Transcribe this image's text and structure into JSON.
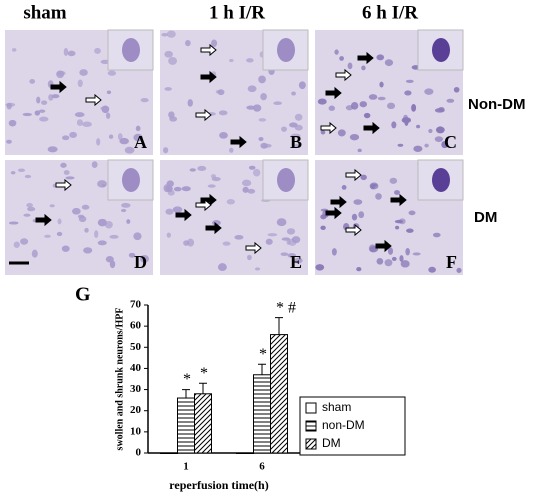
{
  "figure": {
    "columns": [
      "sham",
      "1 h I/R",
      "6 h I/R"
    ],
    "rows": [
      "Non-DM",
      "DM"
    ],
    "panels": [
      "A",
      "B",
      "C",
      "D",
      "E",
      "F"
    ],
    "chart_label": "G"
  },
  "chart_data": {
    "type": "bar",
    "ylabel": "swollen and shrunk neurons/HPF",
    "xlabel": "reperfusion time(h)",
    "categories": [
      "1",
      "6"
    ],
    "series": [
      {
        "name": "sham",
        "color": "#000000",
        "pattern": "none",
        "values": [
          0,
          0
        ]
      },
      {
        "name": "non-DM",
        "color": "#000000",
        "pattern": "horizontal",
        "values": [
          26,
          37
        ],
        "errors": [
          4,
          5
        ],
        "annotations": [
          "*",
          "*"
        ]
      },
      {
        "name": "DM",
        "color": "#000000",
        "pattern": "diagonal",
        "values": [
          28,
          56
        ],
        "errors": [
          5,
          8
        ],
        "annotations": [
          "*",
          "* #"
        ]
      }
    ],
    "ylim": [
      0,
      70
    ],
    "yticks": [
      0,
      10,
      20,
      30,
      40,
      50,
      60,
      70
    ],
    "legend": "lower-right"
  }
}
